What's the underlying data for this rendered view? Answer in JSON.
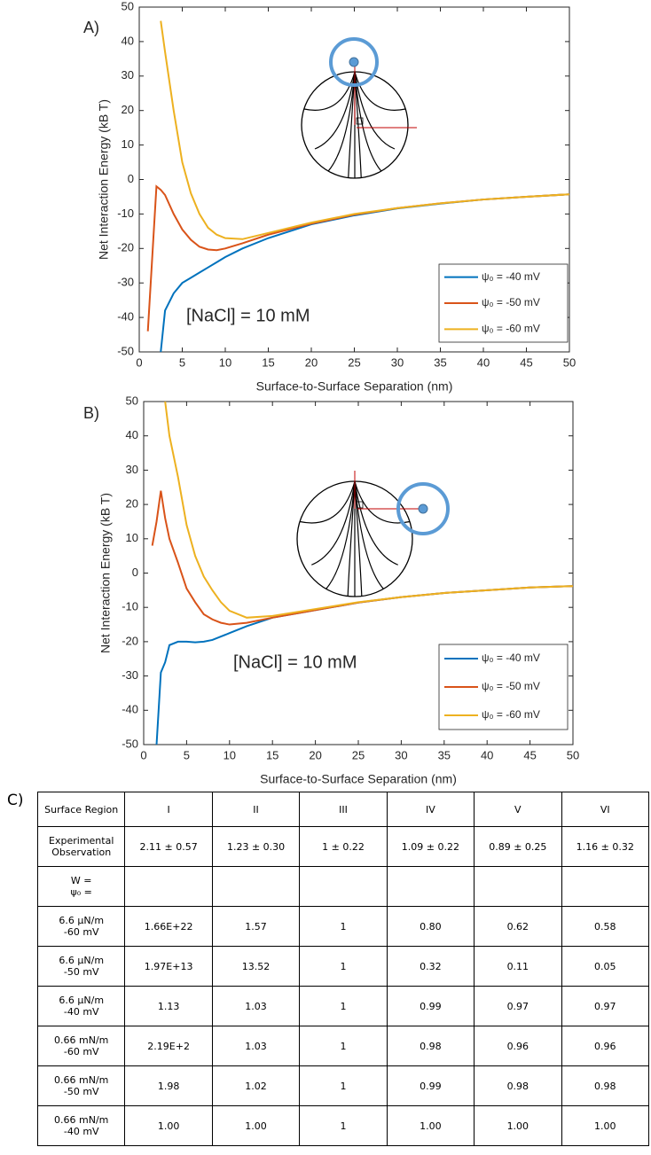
{
  "chart_data": [
    {
      "type": "line",
      "panel": "A)",
      "annotation": "[NaCl] = 10 mM",
      "xlabel": "Surface-to-Surface Separation (nm)",
      "ylabel": "Net Interaction Energy (kB T)",
      "x": [
        1,
        1.5,
        2,
        2.5,
        3,
        4,
        5,
        6,
        7,
        8,
        9,
        10,
        12,
        15,
        20,
        25,
        30,
        35,
        40,
        45,
        50
      ],
      "series": [
        {
          "name": "ψ₀ = -40 mV",
          "color": "#0072bd",
          "values": [
            null,
            null,
            null,
            -50,
            -38,
            -33,
            -30,
            -28.5,
            -27,
            -25.5,
            -24,
            -22.5,
            -20,
            -17,
            -13,
            -10.4,
            -8.4,
            -7,
            -5.8,
            -5,
            -4.3
          ]
        },
        {
          "name": "ψ₀ = -50 mV",
          "color": "#d95319",
          "values": [
            -44,
            -23,
            -2,
            -3,
            -4.5,
            -10,
            -14.5,
            -17.5,
            -19.5,
            -20.3,
            -20.5,
            -20,
            -18.5,
            -16,
            -12.8,
            -10.2,
            -8.3,
            -6.9,
            -5.8,
            -5,
            -4.3
          ]
        },
        {
          "name": "ψ₀ = -60 mV",
          "color": "#edb120",
          "values": [
            null,
            null,
            null,
            46,
            37,
            20,
            5,
            -4,
            -10,
            -14,
            -16,
            -17,
            -17.3,
            -15.5,
            -12.5,
            -10,
            -8.3,
            -6.9,
            -5.8,
            -5,
            -4.3
          ]
        }
      ],
      "xlim": [
        0,
        50
      ],
      "ylim": [
        -50,
        50
      ],
      "xticks": [
        0,
        5,
        10,
        15,
        20,
        25,
        30,
        35,
        40,
        45,
        50
      ],
      "yticks": [
        -50,
        -40,
        -30,
        -20,
        -10,
        0,
        10,
        20,
        30,
        40,
        50
      ],
      "legend": "lower right"
    },
    {
      "type": "line",
      "panel": "B)",
      "annotation": "[NaCl] = 10 mM",
      "xlabel": "Surface-to-Surface Separation (nm)",
      "ylabel": "Net Interaction Energy (kB T)",
      "x": [
        1,
        1.5,
        2,
        2.5,
        3,
        4,
        5,
        6,
        7,
        8,
        9,
        10,
        12,
        15,
        20,
        25,
        30,
        35,
        40,
        45,
        50
      ],
      "series": [
        {
          "name": "ψ₀ = -40 mV",
          "color": "#0072bd",
          "values": [
            null,
            -50,
            -29,
            -26,
            -21,
            -20,
            -20,
            -20.2,
            -20,
            -19.5,
            -18.5,
            -17.5,
            -15.5,
            -13,
            -10.8,
            -8.6,
            -7,
            -5.8,
            -5,
            -4.2,
            -3.8
          ]
        },
        {
          "name": "ψ₀ = -50 mV",
          "color": "#d95319",
          "values": [
            8,
            15,
            24,
            16,
            10,
            3,
            -4.5,
            -8.5,
            -12,
            -13.5,
            -14.5,
            -15,
            -14.5,
            -13,
            -10.8,
            -8.6,
            -7,
            -5.8,
            -5,
            -4.2,
            -3.8
          ]
        },
        {
          "name": "ψ₀ = -60 mV",
          "color": "#edb120",
          "values": [
            null,
            null,
            null,
            50,
            40,
            28,
            14,
            5,
            -1,
            -5,
            -8.5,
            -11,
            -13,
            -12.5,
            -10.5,
            -8.5,
            -7,
            -5.8,
            -5,
            -4.2,
            -3.8
          ]
        }
      ],
      "xlim": [
        0,
        50
      ],
      "ylim": [
        -50,
        50
      ],
      "xticks": [
        0,
        5,
        10,
        15,
        20,
        25,
        30,
        35,
        40,
        45,
        50
      ],
      "yticks": [
        -50,
        -40,
        -30,
        -20,
        -10,
        0,
        10,
        20,
        30,
        40,
        50
      ],
      "legend": "lower right"
    }
  ],
  "table": {
    "label": "C)",
    "header": [
      "Surface Region",
      "I",
      "II",
      "III",
      "IV",
      "V",
      "VI"
    ],
    "rows": [
      [
        "Experimental Observation",
        "2.11 ± 0.57",
        "1.23 ± 0.30",
        "1 ± 0.22",
        "1.09 ± 0.22",
        "0.89 ± 0.25",
        "1.16 ± 0.32"
      ],
      [
        "W =\nψ₀ ="
      ],
      [
        "6.6 µN/m\n-60 mV",
        "1.66E+22",
        "1.57",
        "1",
        "0.80",
        "0.62",
        "0.58"
      ],
      [
        "6.6 µN/m\n-50 mV",
        "1.97E+13",
        "13.52",
        "1",
        "0.32",
        "0.11",
        "0.05"
      ],
      [
        "6.6 µN/m\n-40 mV",
        "1.13",
        "1.03",
        "1",
        "0.99",
        "0.97",
        "0.97"
      ],
      [
        "0.66 mN/m\n-60 mV",
        "2.19E+2",
        "1.03",
        "1",
        "0.98",
        "0.96",
        "0.96"
      ],
      [
        "0.66 mN/m\n-50 mV",
        "1.98",
        "1.02",
        "1",
        "0.99",
        "0.98",
        "0.98"
      ],
      [
        "0.66 mN/m\n-40 mV",
        "1.00",
        "1.00",
        "1",
        "1.00",
        "1.00",
        "1.00"
      ]
    ]
  }
}
